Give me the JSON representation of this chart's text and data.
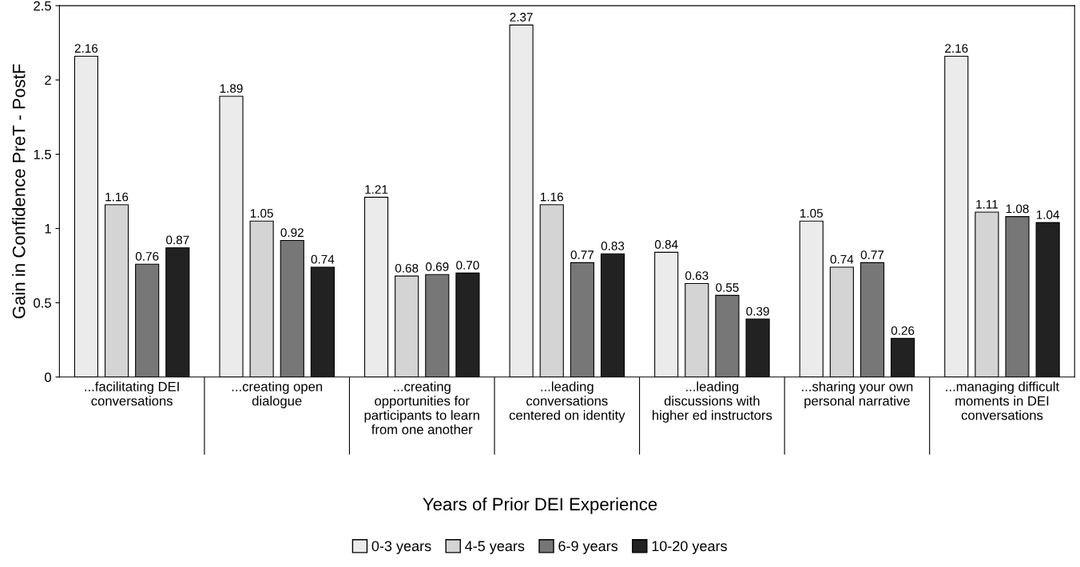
{
  "chart_data": {
    "type": "bar",
    "ylabel": "Gain in Confidence PreT - PostF",
    "xlabel": "Years of Prior DEI Experience",
    "categories": [
      "...facilitating DEI conversations",
      "...creating open dialogue",
      "...creating opportunities for participants to learn from one another",
      "...leading conversations centered on identity",
      "...leading discussions with higher ed instructors",
      "...sharing your own personal narrative",
      "...managing difficult moments in DEI conversations"
    ],
    "series": [
      {
        "name": "0-3 years",
        "color": "#ebebeb",
        "values": [
          2.16,
          1.89,
          1.21,
          2.37,
          0.84,
          1.05,
          2.16
        ],
        "value_labels": [
          "2.16",
          "1.89",
          "1.21",
          "2.37",
          "0.84",
          "1.05",
          "2.16"
        ]
      },
      {
        "name": "4-5 years",
        "color": "#d4d4d4",
        "values": [
          1.16,
          1.05,
          0.68,
          1.16,
          0.63,
          0.74,
          1.11
        ],
        "value_labels": [
          "1.16",
          "1.05",
          "0.68",
          "1.16",
          "0.63",
          "0.74",
          "1.11"
        ]
      },
      {
        "name": "6-9 years",
        "color": "#777777",
        "values": [
          0.76,
          0.92,
          0.69,
          0.77,
          0.55,
          0.77,
          1.08
        ],
        "value_labels": [
          "0.76",
          "0.92",
          "0.69",
          "0.77",
          "0.55",
          "0.77",
          "1.08"
        ]
      },
      {
        "name": "10-20 years",
        "color": "#222222",
        "values": [
          0.87,
          0.74,
          0.7,
          0.83,
          0.39,
          0.26,
          1.04
        ],
        "value_labels": [
          "0.87",
          "0.74",
          "0.70",
          "0.83",
          "0.39",
          "0.26",
          "1.04"
        ]
      }
    ],
    "ylim": [
      0,
      2.5
    ],
    "yticks": [
      0,
      0.5,
      1,
      1.5,
      2,
      2.5
    ],
    "grid": false,
    "legend": "bottom"
  }
}
